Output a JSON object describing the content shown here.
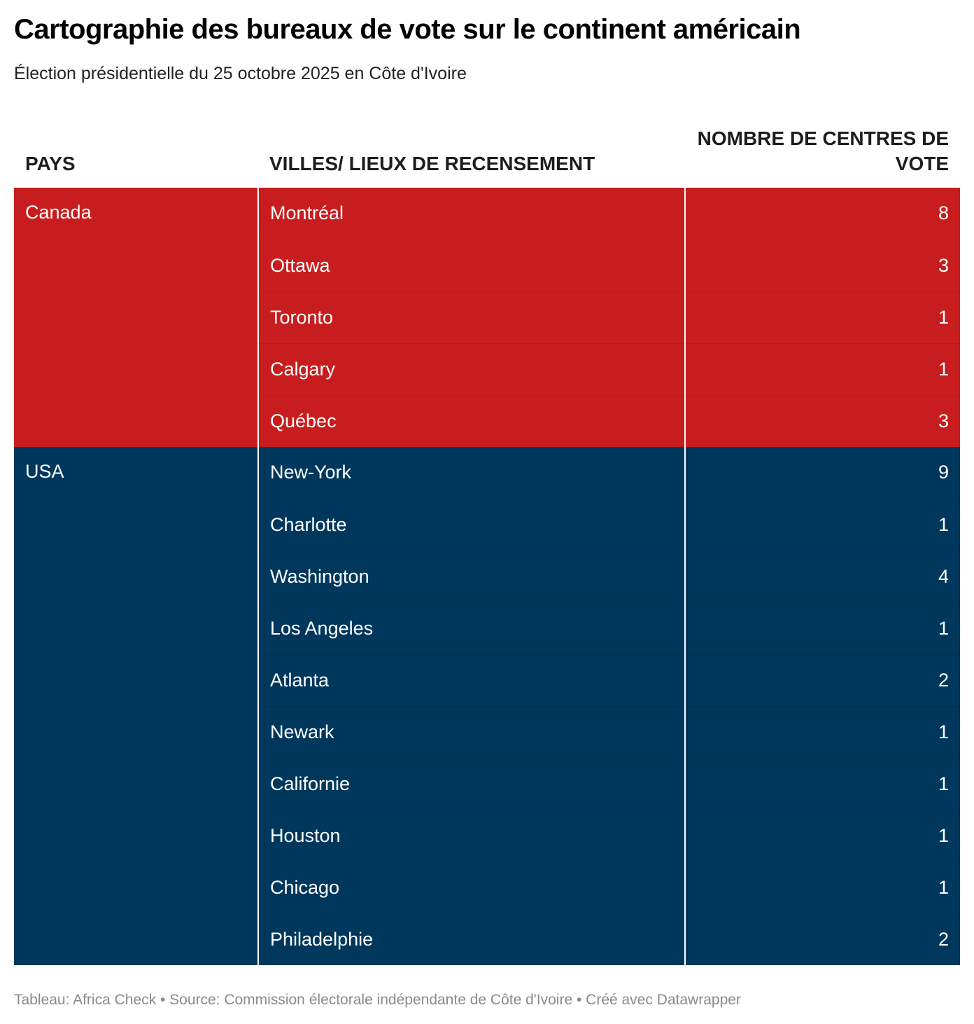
{
  "title": "Cartographie des bureaux de vote sur le continent américain",
  "subtitle": "Élection présidentielle du 25 octobre 2025 en Côte d'Ivoire",
  "colors": {
    "canada": "#c81d1e",
    "usa": "#00375c"
  },
  "chart_data": {
    "type": "table",
    "title": "Cartographie des bureaux de vote sur le continent américain",
    "subtitle": "Élection présidentielle du 25 octobre 2025 en Côte d'Ivoire",
    "columns": [
      "PAYS",
      "VILLES/ LIEUX DE RECENSEMENT",
      "NOMBRE DE CENTRES DE VOTE"
    ],
    "groups": [
      {
        "country": "Canada",
        "color": "#c81d1e",
        "rows": [
          {
            "city": "Montréal",
            "count": 8
          },
          {
            "city": "Ottawa",
            "count": 3
          },
          {
            "city": "Toronto",
            "count": 1
          },
          {
            "city": "Calgary",
            "count": 1
          },
          {
            "city": "Québec",
            "count": 3
          }
        ]
      },
      {
        "country": "USA",
        "color": "#00375c",
        "rows": [
          {
            "city": "New-York",
            "count": 9
          },
          {
            "city": "Charlotte",
            "count": 1
          },
          {
            "city": "Washington",
            "count": 4
          },
          {
            "city": "Los Angeles",
            "count": 1
          },
          {
            "city": "Atlanta",
            "count": 2
          },
          {
            "city": "Newark",
            "count": 1
          },
          {
            "city": "Californie",
            "count": 1
          },
          {
            "city": "Houston",
            "count": 1
          },
          {
            "city": "Chicago",
            "count": 1
          },
          {
            "city": "Philadelphie",
            "count": 2
          }
        ]
      }
    ]
  },
  "footer": "Tableau: Africa Check • Source: Commission électorale indépendante de Côte d'Ivoire • Créé avec Datawrapper"
}
